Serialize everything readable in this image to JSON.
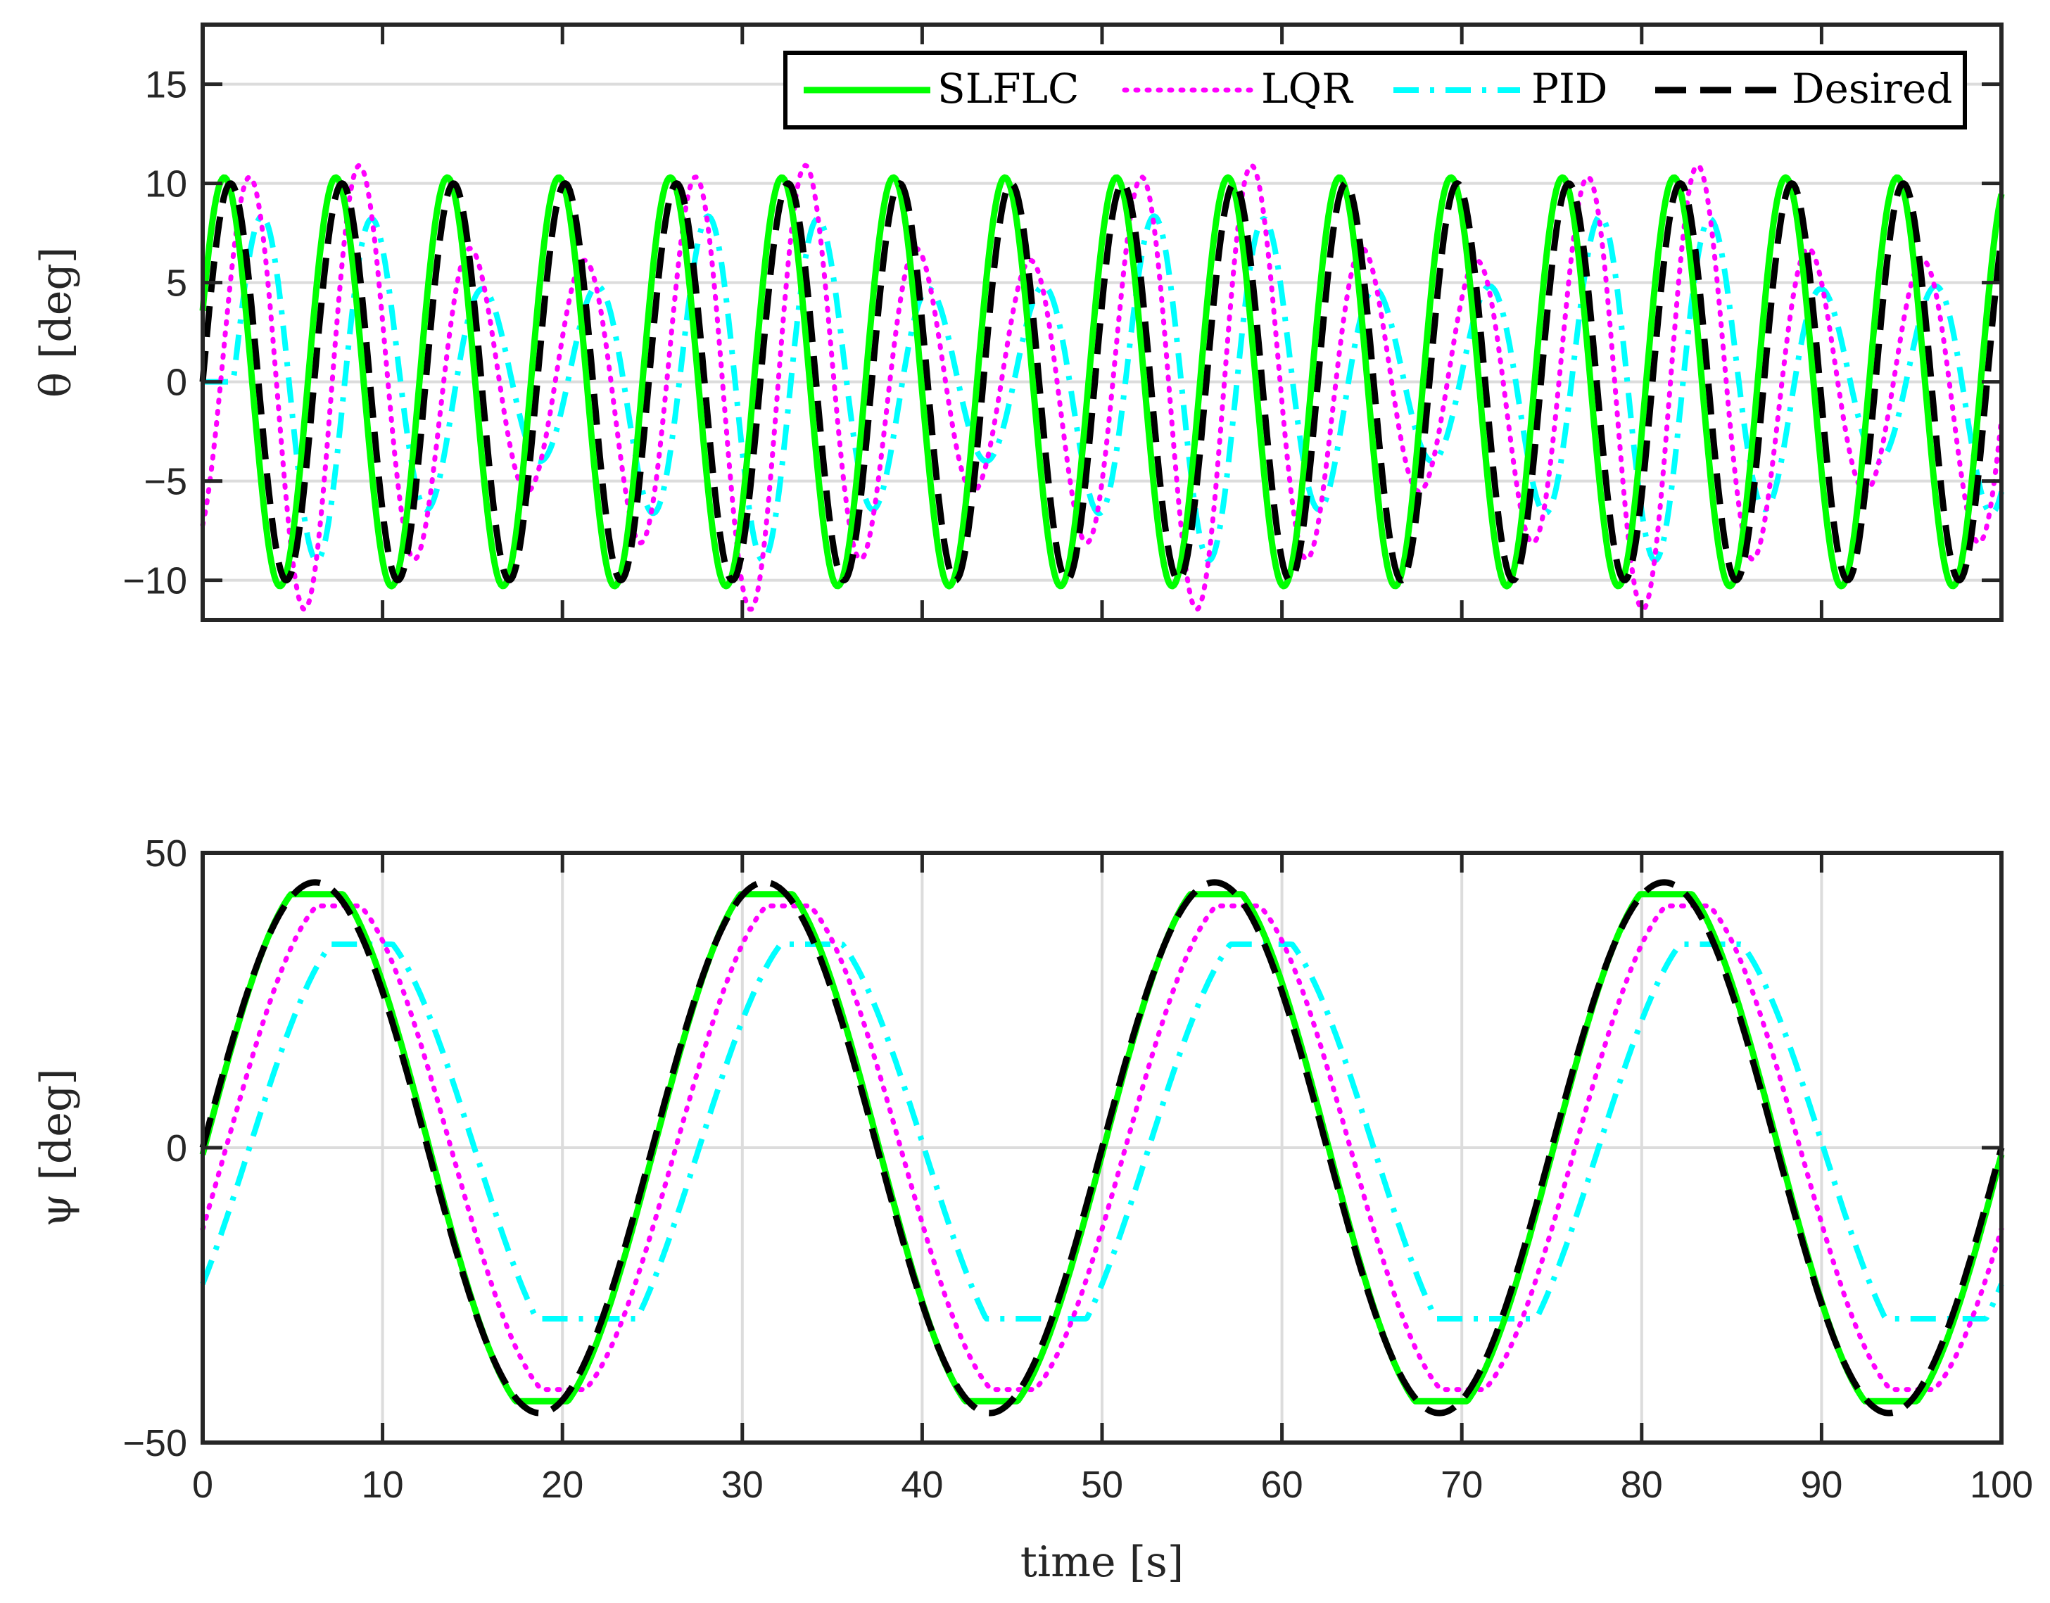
{
  "chart_data": [
    {
      "type": "line",
      "panel": "top",
      "ylabel": "θ [deg]",
      "xlabel": "",
      "xlim": [
        0,
        100
      ],
      "ylim": [
        -12,
        18
      ],
      "yticks": [
        -10,
        -5,
        0,
        5,
        10,
        15
      ],
      "ytick_labels": [
        "−10",
        "−5",
        "0",
        "5",
        "10",
        "15"
      ],
      "xticks": [
        0,
        10,
        20,
        30,
        40,
        50,
        60,
        70,
        80,
        90,
        100
      ],
      "grid": "horizontal",
      "legend": {
        "position": "top-right",
        "entries": [
          "SLFLC",
          "LQR",
          "PID",
          "Desired"
        ]
      },
      "series": [
        {
          "name": "Desired",
          "style": "dashed",
          "color": "#000000",
          "model": {
            "kind": "sine",
            "amplitude": 10,
            "period": 6.2,
            "phase_shift": 0.0,
            "offset": 0
          }
        },
        {
          "name": "SLFLC",
          "style": "solid",
          "color": "#00ff00",
          "model": {
            "kind": "sine",
            "amplitude": 10.3,
            "period": 6.2,
            "phase_shift": -0.35,
            "offset": 0
          }
        },
        {
          "name": "LQR",
          "style": "dotted",
          "color": "#ff00ff",
          "model": {
            "kind": "sine-mod",
            "amplitude": 8.5,
            "period": 6.2,
            "phase_shift": 1.0,
            "offset": 0,
            "mod_amp": 3.0,
            "mod_period": 24.8
          }
        },
        {
          "name": "PID",
          "style": "dashdot",
          "color": "#00ffff",
          "model": {
            "kind": "sine-mod",
            "amplitude": 6.5,
            "period": 6.2,
            "phase_shift": 1.7,
            "offset": 0,
            "mod_amp": 2.5,
            "mod_period": 24.8,
            "start_zero": true
          }
        }
      ]
    },
    {
      "type": "line",
      "panel": "bottom",
      "ylabel": "ψ [deg]",
      "xlabel": "time [s]",
      "xlim": [
        0,
        100
      ],
      "ylim": [
        -50,
        50
      ],
      "yticks": [
        -50,
        0,
        50
      ],
      "ytick_labels": [
        "−50",
        "0",
        "50"
      ],
      "xticks": [
        0,
        10,
        20,
        30,
        40,
        50,
        60,
        70,
        80,
        90,
        100
      ],
      "xtick_labels": [
        "0",
        "10",
        "20",
        "30",
        "40",
        "50",
        "60",
        "70",
        "80",
        "90",
        "100"
      ],
      "grid": "both",
      "series": [
        {
          "name": "Desired",
          "style": "dashed",
          "color": "#000000",
          "model": {
            "kind": "sine",
            "amplitude": 45,
            "period": 25,
            "phase_shift": 0.0,
            "sat": 45
          }
        },
        {
          "name": "SLFLC",
          "style": "solid",
          "color": "#00ff00",
          "model": {
            "kind": "sine",
            "amplitude": 46,
            "period": 25,
            "phase_shift": 0.1,
            "sat": 43
          }
        },
        {
          "name": "LQR",
          "style": "dotted",
          "color": "#ff00ff",
          "model": {
            "kind": "sine",
            "amplitude": 43,
            "period": 25,
            "phase_shift": 1.3,
            "sat": 41
          }
        },
        {
          "name": "PID",
          "style": "dashdot",
          "color": "#00ffff",
          "model": {
            "kind": "sine",
            "amplitude": 38,
            "period": 25,
            "phase_shift": 2.6,
            "sat": 34.5,
            "sat_low": -29
          }
        }
      ]
    }
  ]
}
